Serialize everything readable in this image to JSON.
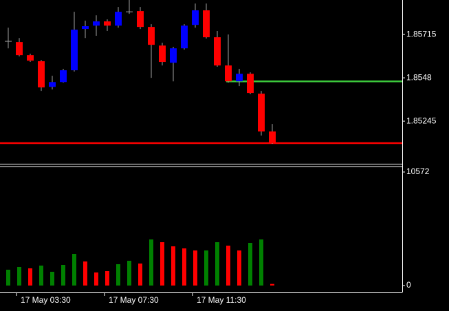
{
  "chart_data": [
    {
      "type": "candlestick",
      "open": [
        1.85678,
        1.85674,
        1.85603,
        1.8557,
        1.85431,
        1.85457,
        1.85521,
        1.85745,
        1.85763,
        1.85786,
        1.85763,
        1.85838,
        1.85842,
        1.85756,
        1.85655,
        1.85562,
        1.8564,
        1.85767,
        1.85846,
        1.857,
        1.85547,
        1.85461,
        1.85502,
        1.85394,
        1.85189
      ],
      "high": [
        1.85752,
        1.85696,
        1.85611,
        1.85577,
        1.85491,
        1.85529,
        1.85838,
        1.8579,
        1.85819,
        1.85797,
        1.85864,
        1.85902,
        1.85864,
        1.85771,
        1.8567,
        1.85648,
        1.85771,
        1.85883,
        1.85883,
        1.85734,
        1.85715,
        1.85529,
        1.8551,
        1.85409,
        1.8523
      ],
      "low": [
        1.8564,
        1.85596,
        1.85566,
        1.85409,
        1.85417,
        1.85454,
        1.85514,
        1.85696,
        1.85708,
        1.85734,
        1.85752,
        1.85827,
        1.85745,
        1.8548,
        1.85547,
        1.85461,
        1.85633,
        1.85752,
        1.85693,
        1.8554,
        1.85454,
        1.85435,
        1.85391,
        1.85167,
        1.85122
      ],
      "close": [
        1.85678,
        1.85603,
        1.85573,
        1.85428,
        1.85457,
        1.85521,
        1.85741,
        1.8576,
        1.85786,
        1.85763,
        1.85838,
        1.85838,
        1.85756,
        1.85659,
        1.85566,
        1.8564,
        1.85763,
        1.85846,
        1.857,
        1.85547,
        1.85461,
        1.85502,
        1.85398,
        1.85189,
        1.85126
      ],
      "up_color": "#0000ff",
      "down_color": "#ff0000",
      "doji_color": "#a0a0a0",
      "wick_color": "#a0a0a0",
      "ylim": [
        1.85014,
        1.85902
      ],
      "yticks": [
        1.85715,
        1.8548,
        1.85245
      ],
      "hlines": [
        {
          "value": 1.85461,
          "color": "#3cc83c",
          "start": 20
        },
        {
          "value": 1.85126,
          "color": "#ff0000",
          "start": 0
        }
      ]
    },
    {
      "type": "bar",
      "categories": [
        null,
        "17 May 03:30",
        null,
        null,
        null,
        null,
        null,
        null,
        null,
        "17 May 07:30",
        null,
        null,
        null,
        null,
        null,
        null,
        null,
        "17 May 11:30",
        null,
        null,
        null,
        null,
        null,
        null,
        null
      ],
      "values": [
        1474,
        1730,
        1602,
        1858,
        1281,
        1922,
        2947,
        2242,
        1217,
        1345,
        1986,
        2307,
        2050,
        4293,
        4036,
        3652,
        3460,
        3268,
        3268,
        4036,
        3716,
        3268,
        3972,
        4293,
        150
      ],
      "colors": [
        "#008000",
        "#008000",
        "#ff0000",
        "#008000",
        "#008000",
        "#008000",
        "#008000",
        "#ff0000",
        "#ff0000",
        "#ff0000",
        "#008000",
        "#008000",
        "#ff0000",
        "#008000",
        "#ff0000",
        "#ff0000",
        "#ff0000",
        "#ff0000",
        "#008000",
        "#008000",
        "#ff0000",
        "#ff0000",
        "#008000",
        "#008000",
        "#ff0000"
      ],
      "ylim": [
        -641,
        11084
      ],
      "yticks": [
        0,
        10572
      ]
    }
  ]
}
